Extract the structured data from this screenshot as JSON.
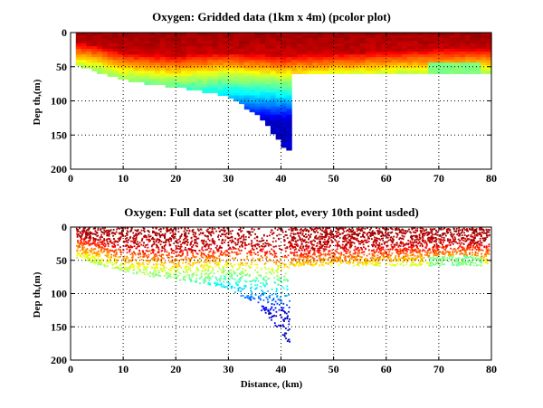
{
  "chart_data": [
    {
      "type": "heatmap",
      "title": "Oxygen: Gridded data (1km x 4m) (pcolor plot)",
      "xlabel": "",
      "ylabel": "Dep th,(m)",
      "xlim": [
        0,
        80
      ],
      "ylim": [
        200,
        0
      ],
      "xticks": [
        "0",
        "10",
        "20",
        "30",
        "40",
        "50",
        "60",
        "70",
        "80"
      ],
      "yticks": [
        "0",
        "50",
        "100",
        "150",
        "200"
      ],
      "grid": true,
      "colormap": "jet",
      "bottom_depth_profile": {
        "distance_km": [
          1,
          5,
          10,
          15,
          20,
          25,
          30,
          35,
          38,
          41,
          42,
          50,
          60,
          70,
          79
        ],
        "max_depth_m": [
          45,
          55,
          66,
          73,
          78,
          84,
          92,
          115,
          140,
          172,
          57,
          57,
          57,
          57,
          57
        ]
      },
      "low_oxygen_onset_depth_m": {
        "distance_km": [
          1,
          5,
          10,
          20,
          30,
          40,
          72,
          79
        ],
        "depth_m": [
          40,
          45,
          55,
          60,
          55,
          60,
          50,
          50
        ]
      }
    },
    {
      "type": "scatter",
      "title": "Oxygen: Full data set (scatter plot, every 10th point usded)",
      "xlabel": "Distance, (km)",
      "ylabel": "Dep th,(m)",
      "xlim": [
        0,
        80
      ],
      "ylim": [
        200,
        0
      ],
      "xticks": [
        "0",
        "10",
        "20",
        "30",
        "40",
        "50",
        "60",
        "70",
        "80"
      ],
      "yticks": [
        "0",
        "50",
        "100",
        "150",
        "200"
      ],
      "grid": true,
      "colormap": "jet",
      "note": "every 10th point used"
    }
  ]
}
